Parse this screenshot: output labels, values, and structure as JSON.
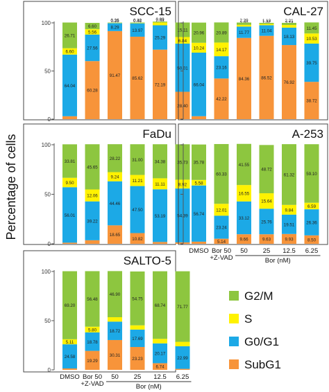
{
  "ylabel": "Percentage of cells",
  "legend": [
    {
      "name": "G2/M",
      "color": "#8dc63f"
    },
    {
      "name": "S",
      "color": "#fff200"
    },
    {
      "name": "G0/G1",
      "color": "#1ca9e6"
    },
    {
      "name": "SubG1",
      "color": "#f7943a"
    }
  ],
  "x_categories": [
    "DMSO",
    "Bor 50\n+Z-VAD",
    "50",
    "25",
    "12.5",
    "6.25"
  ],
  "x_axis_label": "Bor (nM)",
  "chart_data": [
    {
      "type": "bar",
      "stacked": true,
      "title": "SCC-15",
      "ylim": [
        0,
        100
      ],
      "yticks": [
        0,
        50,
        100
      ],
      "categories": [
        "DMSO",
        "Bor 50 +Z-VAD",
        "50",
        "25",
        "12.5",
        "6.25"
      ],
      "series": [
        {
          "name": "SubG1",
          "values": [
            3.0,
            60.28,
            91.47,
            85.62,
            72.19,
            28.4
          ]
        },
        {
          "name": "G0/G1",
          "values": [
            64.04,
            27.56,
            8.29,
            13.97,
            25.29,
            50.01
          ]
        },
        {
          "name": "S",
          "values": [
            6.6,
            5.56,
            0.35,
            0.48,
            2.93,
            6.84
          ]
        },
        {
          "name": "G2/M",
          "values": [
            26.71,
            6.6,
            0.26,
            0.32,
            0.89,
            15.11
          ]
        }
      ],
      "markers": [
        [
          "",
          "# # # #",
          "# # # #",
          "# # # #",
          "# # # #",
          "# # # *"
        ]
      ]
    },
    {
      "type": "bar",
      "stacked": true,
      "title": "CAL-27",
      "ylim": [
        0,
        100
      ],
      "yticks": [
        0,
        50,
        100
      ],
      "categories": [
        "DMSO",
        "Bor 50 +Z-VAD",
        "50",
        "25",
        "12.5",
        "6.25"
      ],
      "series": [
        {
          "name": "SubG1",
          "values": [
            3.03,
            42.22,
            84.36,
            86.52,
            76.92,
            38.72
          ]
        },
        {
          "name": "G0/G1",
          "values": [
            66.04,
            23.16,
            11.77,
            11.04,
            18.13,
            39.75
          ]
        },
        {
          "name": "S",
          "values": [
            10.24,
            14.17,
            1.8,
            1.32,
            2.74,
            10.53
          ]
        },
        {
          "name": "G2/M",
          "values": [
            20.96,
            20.89,
            2.39,
            1.12,
            2.21,
            11.45
          ]
        }
      ]
    },
    {
      "type": "bar",
      "stacked": true,
      "title": "FaDu",
      "ylim": [
        0,
        100
      ],
      "yticks": [
        0,
        50,
        100
      ],
      "categories": [
        "DMSO",
        "Bor 50 +Z-VAD",
        "50",
        "25",
        "12.5",
        "6.25"
      ],
      "series": [
        {
          "name": "SubG1",
          "values": [
            1.13,
            3.59,
            18.65,
            10.82,
            1.84,
            1.44
          ]
        },
        {
          "name": "G0/G1",
          "values": [
            56.01,
            39.22,
            44.46,
            47.5,
            53.19,
            54.39
          ]
        },
        {
          "name": "S",
          "values": [
            9.5,
            12.06,
            9.24,
            11.21,
            11.11,
            8.92
          ]
        },
        {
          "name": "G2/M",
          "values": [
            33.81,
            45.65,
            28.22,
            31.0,
            34.38,
            35.73
          ]
        }
      ]
    },
    {
      "type": "bar",
      "stacked": true,
      "title": "A-253",
      "ylim": [
        0,
        100
      ],
      "yticks": [
        0,
        50,
        100
      ],
      "categories": [
        "DMSO",
        "Bor 50 +Z-VAD",
        "50",
        "25",
        "12.5",
        "6.25"
      ],
      "series": [
        {
          "name": "SubG1",
          "values": [
            2.15,
            5.14,
            9.66,
            9.63,
            9.93,
            8.5
          ]
        },
        {
          "name": "G0/G1",
          "values": [
            56.74,
            23.24,
            33.12,
            25.76,
            19.51,
            26.36
          ]
        },
        {
          "name": "S",
          "values": [
            5.58,
            12.01,
            16.55,
            15.64,
            9.84,
            6.59
          ]
        },
        {
          "name": "G2/M",
          "values": [
            35.78,
            60.33,
            41.55,
            48.72,
            61.32,
            59.1
          ]
        }
      ]
    },
    {
      "type": "bar",
      "stacked": true,
      "title": "SALTO-5",
      "ylim": [
        0,
        100
      ],
      "yticks": [
        0,
        50,
        100
      ],
      "categories": [
        "DMSO",
        "Bor 50 +Z-VAD",
        "50",
        "25",
        "12.5",
        "6.25"
      ],
      "series": [
        {
          "name": "SubG1",
          "values": [
            1.4,
            19.29,
            30.31,
            23.23,
            6.74,
            1.0
          ]
        },
        {
          "name": "G0/G1",
          "values": [
            24.58,
            18.78,
            18.72,
            17.69,
            20.17,
            22.99
          ]
        },
        {
          "name": "S",
          "values": [
            5.11,
            5.8,
            4.49,
            4.34,
            4.59,
            4.48
          ]
        },
        {
          "name": "G2/M",
          "values": [
            69.2,
            56.48,
            46.9,
            54.75,
            68.74,
            71.77
          ]
        }
      ]
    }
  ]
}
